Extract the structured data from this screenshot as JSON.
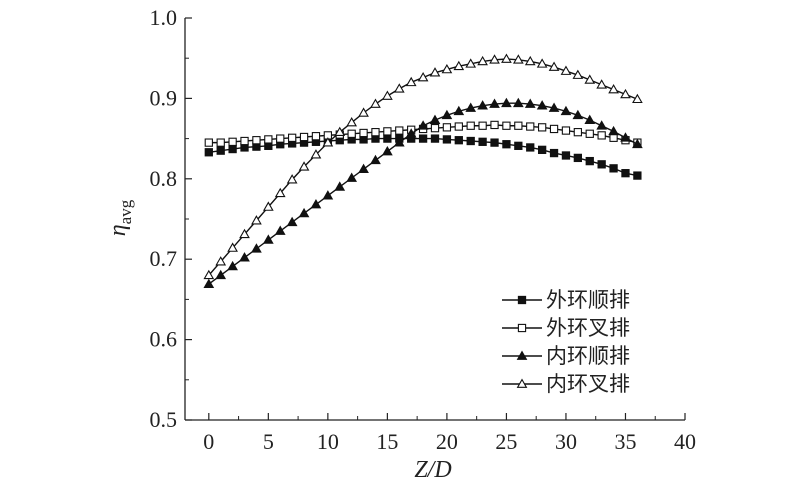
{
  "chart_data": {
    "type": "line",
    "xlabel": "Z/D",
    "ylabel": {
      "symbol": "η",
      "subscript": "avg"
    },
    "xlim": [
      -2,
      40
    ],
    "ylim": [
      0.5,
      1.0
    ],
    "xticks": [
      0,
      5,
      10,
      15,
      20,
      25,
      30,
      35,
      40
    ],
    "yticks": [
      "0.5",
      "0.6",
      "0.7",
      "0.8",
      "0.9",
      "1.0"
    ],
    "grid": false,
    "legend_position": "bottom-right",
    "x": [
      0,
      1,
      2,
      3,
      4,
      5,
      6,
      7,
      8,
      9,
      10,
      11,
      12,
      13,
      14,
      15,
      16,
      17,
      18,
      19,
      20,
      21,
      22,
      23,
      24,
      25,
      26,
      27,
      28,
      29,
      30,
      31,
      32,
      33,
      34,
      35,
      36
    ],
    "series": [
      {
        "name": "外环顺排",
        "marker": "filled-square",
        "color": "#111111",
        "values": [
          0.833,
          0.835,
          0.837,
          0.839,
          0.84,
          0.841,
          0.843,
          0.844,
          0.845,
          0.846,
          0.847,
          0.848,
          0.849,
          0.849,
          0.85,
          0.85,
          0.85,
          0.85,
          0.85,
          0.85,
          0.849,
          0.848,
          0.847,
          0.846,
          0.845,
          0.843,
          0.841,
          0.839,
          0.836,
          0.832,
          0.829,
          0.826,
          0.822,
          0.818,
          0.813,
          0.807,
          0.804
        ]
      },
      {
        "name": "外环叉排",
        "marker": "open-square",
        "color": "#111111",
        "values": [
          0.845,
          0.845,
          0.846,
          0.847,
          0.848,
          0.849,
          0.85,
          0.851,
          0.852,
          0.853,
          0.854,
          0.855,
          0.856,
          0.857,
          0.858,
          0.859,
          0.86,
          0.861,
          0.862,
          0.863,
          0.864,
          0.865,
          0.866,
          0.866,
          0.867,
          0.866,
          0.866,
          0.865,
          0.864,
          0.862,
          0.86,
          0.858,
          0.856,
          0.854,
          0.851,
          0.848,
          0.845
        ]
      },
      {
        "name": "内环顺排",
        "marker": "filled-triangle",
        "color": "#111111",
        "values": [
          0.669,
          0.68,
          0.691,
          0.702,
          0.713,
          0.724,
          0.735,
          0.746,
          0.757,
          0.768,
          0.779,
          0.79,
          0.801,
          0.812,
          0.823,
          0.834,
          0.845,
          0.856,
          0.866,
          0.873,
          0.879,
          0.884,
          0.888,
          0.891,
          0.893,
          0.894,
          0.894,
          0.893,
          0.891,
          0.888,
          0.884,
          0.879,
          0.873,
          0.866,
          0.859,
          0.851,
          0.843
        ]
      },
      {
        "name": "内环叉排",
        "marker": "open-triangle",
        "color": "#111111",
        "values": [
          0.68,
          0.697,
          0.714,
          0.731,
          0.748,
          0.765,
          0.782,
          0.799,
          0.815,
          0.83,
          0.845,
          0.858,
          0.87,
          0.882,
          0.893,
          0.903,
          0.912,
          0.92,
          0.926,
          0.932,
          0.936,
          0.94,
          0.943,
          0.946,
          0.948,
          0.949,
          0.948,
          0.946,
          0.943,
          0.939,
          0.934,
          0.929,
          0.923,
          0.917,
          0.911,
          0.905,
          0.899
        ]
      }
    ]
  }
}
